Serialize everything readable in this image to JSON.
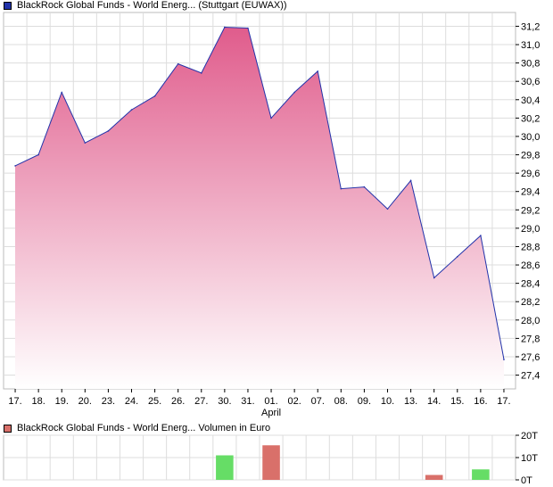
{
  "price_legend": {
    "label": "BlackRock Global Funds - World Energ... (Stuttgart (EUWAX))",
    "color": "#2233aa"
  },
  "volume_legend": {
    "label": "BlackRock Global Funds - World Energ... Volumen in Euro",
    "color": "#d9706a"
  },
  "chart_data": [
    {
      "type": "area",
      "title": "BlackRock Global Funds - World Energ... (Stuttgart (EUWAX))",
      "x": [
        "17.",
        "18.",
        "19.",
        "20.",
        "23.",
        "24.",
        "25.",
        "26.",
        "27.",
        "30.",
        "31.",
        "01.",
        "02.",
        "07.",
        "08.",
        "09.",
        "10.",
        "13.",
        "14.",
        "15.",
        "16.",
        "17."
      ],
      "x_sublabels": {
        "01.": "April"
      },
      "y": [
        29.68,
        29.8,
        30.48,
        29.93,
        30.06,
        30.29,
        30.44,
        30.79,
        30.69,
        31.19,
        31.18,
        30.2,
        30.48,
        30.71,
        29.43,
        29.45,
        29.21,
        29.52,
        28.46,
        28.69,
        28.92,
        27.57
      ],
      "y_ticks": [
        "27,4",
        "27,6",
        "27,8",
        "28,0",
        "28,2",
        "28,4",
        "28,6",
        "28,8",
        "29,0",
        "29,2",
        "29,4",
        "29,6",
        "29,8",
        "30,0",
        "30,2",
        "30,4",
        "30,6",
        "30,8",
        "31,0",
        "31,2"
      ],
      "ylim": [
        27.25,
        31.35
      ],
      "y_axis_side": "right",
      "grid": true,
      "line_color": "#2233aa",
      "fill_top_color": "#e05c8c",
      "fill_bottom_color": "#ffffff"
    },
    {
      "type": "bar",
      "title": "BlackRock Global Funds - World Energ... Volumen in Euro",
      "x": [
        "17.",
        "18.",
        "19.",
        "20.",
        "23.",
        "24.",
        "25.",
        "26.",
        "27.",
        "30.",
        "31.",
        "01.",
        "02.",
        "07.",
        "08.",
        "09.",
        "10.",
        "13.",
        "14.",
        "15.",
        "16.",
        "17."
      ],
      "values": [
        0,
        0,
        0,
        0,
        0,
        0,
        0,
        0,
        0,
        11000,
        0,
        15500,
        0,
        0,
        0,
        0,
        0,
        0,
        2200,
        0,
        4700,
        0
      ],
      "bar_colors": [
        "",
        "",
        "",
        "",
        "",
        "",
        "",
        "",
        "",
        "#66dd66",
        "",
        "#d9706a",
        "",
        "",
        "",
        "",
        "",
        "",
        "#d9706a",
        "",
        "#66dd66",
        ""
      ],
      "y_ticks": [
        "0T",
        "10T",
        "20T"
      ],
      "ylim": [
        0,
        20000
      ],
      "y_axis_side": "right",
      "grid": true
    }
  ]
}
